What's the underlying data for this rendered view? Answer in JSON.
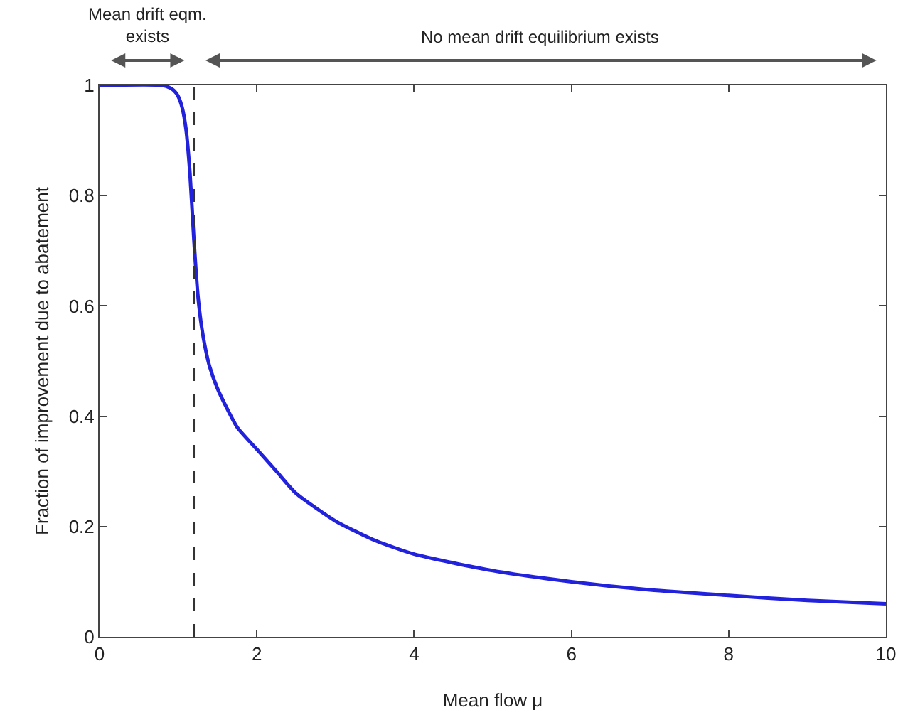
{
  "chart_data": {
    "type": "line",
    "xlabel": "Mean flow μ",
    "ylabel": "Fraction of improvement due to abatement",
    "annotations": [
      "Mean drift eqm.\nexists",
      "No mean drift equilibrium exists"
    ],
    "x": [
      0,
      0.8,
      0.9,
      0.95,
      1.0,
      1.05,
      1.1,
      1.15,
      1.2,
      1.25,
      1.3,
      1.35,
      1.4,
      1.5,
      1.6,
      1.75,
      2,
      2.25,
      2.5,
      3,
      3.5,
      4,
      5,
      6,
      7,
      8,
      9,
      10
    ],
    "series": [
      {
        "color": "#2222dd",
        "values": [
          1,
          1,
          0.995,
          0.99,
          0.98,
          0.96,
          0.92,
          0.84,
          0.72,
          0.62,
          0.56,
          0.52,
          0.49,
          0.45,
          0.42,
          0.38,
          0.34,
          0.3,
          0.26,
          0.21,
          0.175,
          0.15,
          0.12,
          0.1,
          0.085,
          0.075,
          0.066,
          0.06
        ]
      }
    ],
    "ref_lines": [
      {
        "axis": "x",
        "value": 1.2,
        "color": "#333333",
        "line_style": "dashed"
      }
    ],
    "xlim": [
      0,
      10
    ],
    "xticks": [
      0,
      2,
      4,
      6,
      8,
      10
    ],
    "ylim": [
      0,
      1
    ],
    "yticks": [
      0,
      0.2,
      0.4,
      0.6,
      0.8,
      1
    ],
    "grid": false,
    "marker": "none",
    "line_style": "solid"
  }
}
